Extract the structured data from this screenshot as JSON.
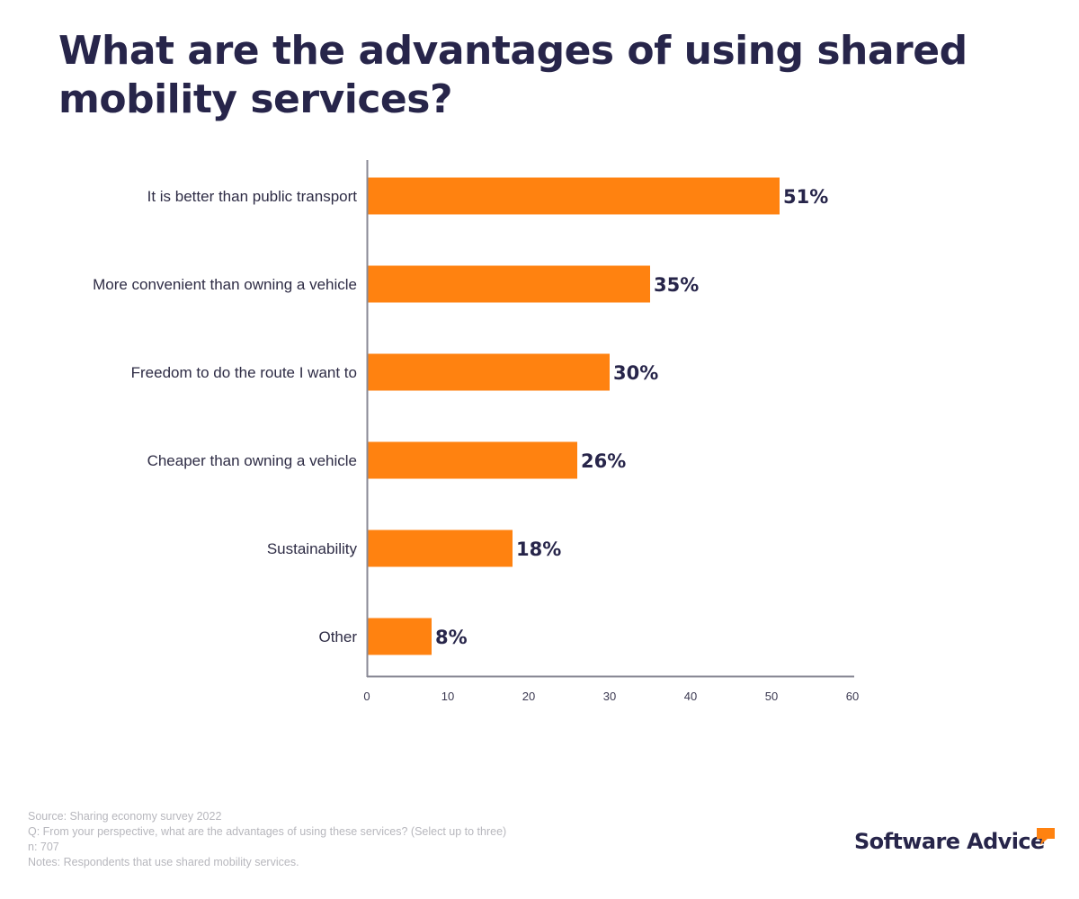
{
  "title": "What are the advantages of using shared mobility services?",
  "chart_data": {
    "type": "bar",
    "orientation": "horizontal",
    "categories": [
      "It is better than public transport",
      "More convenient than owning a vehicle",
      "Freedom to do the route I want to",
      "Cheaper than owning a vehicle",
      "Sustainability",
      "Other"
    ],
    "values": [
      51,
      35,
      30,
      26,
      18,
      8
    ],
    "value_labels": [
      "51%",
      "35%",
      "30%",
      "26%",
      "18%",
      "8%"
    ],
    "xlim": [
      0,
      60
    ],
    "xticks": [
      "0",
      "10",
      "20",
      "30",
      "40",
      "50",
      "60"
    ],
    "xlabel": "",
    "ylabel": "",
    "grid": false,
    "bar_color": "#ff8210"
  },
  "notes": {
    "source": "Source: Sharing economy survey 2022",
    "question": "Q: From your perspective, what are the advantages of using these services? (Select up to three)",
    "n": "n: 707",
    "notes": "Notes: Respondents that use shared mobility services."
  },
  "brand": {
    "name": "Software Advice",
    "icon": "speech-bubble-icon",
    "accent_color": "#ff8210",
    "text_color": "#27254a"
  }
}
